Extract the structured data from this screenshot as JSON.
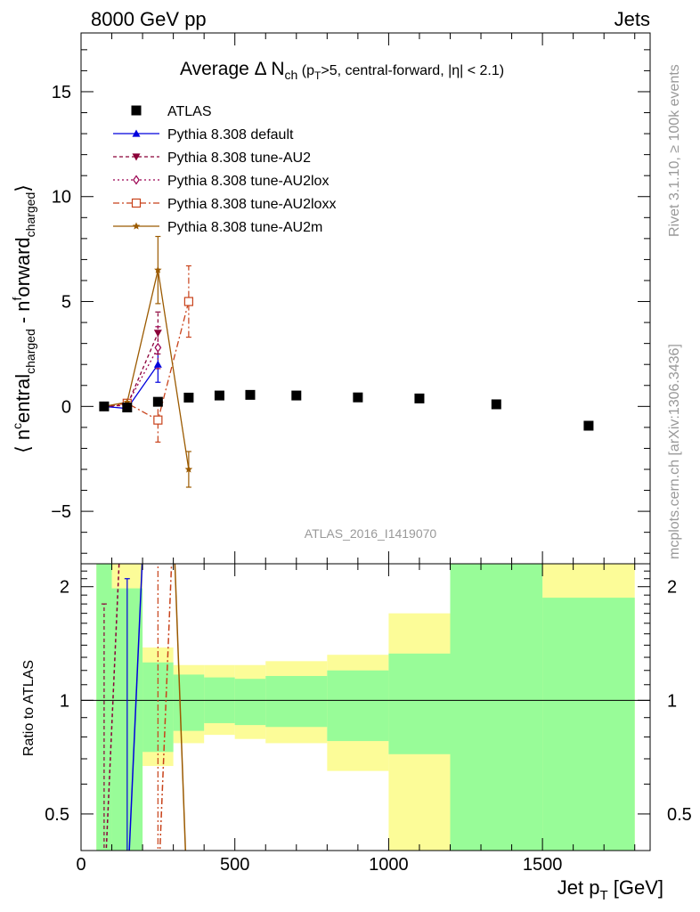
{
  "header": {
    "energy_label": "8000 GeV pp",
    "category_label": "Jets",
    "analysis_id": "ATLAS_2016_I1419070",
    "rivet_label": "Rivet 3.1.10, ≥ 100k events",
    "source_label": "mcplots.cern.ch [arXiv:1306.3436]"
  },
  "chart_data": [
    {
      "type": "scatter",
      "title": "Average Δ N_ch (p_T>5, central-forward, |η| < 2.1)",
      "title_parts": {
        "main": "Average Δ N",
        "sub1": "ch",
        "rest1": " (p",
        "sub2": "T",
        "rest2": ">5, central-forward, |η| < 2.1)"
      },
      "ylabel": "⟨ n^central_charged - n^forward_charged ⟩",
      "ylabel_parts": {
        "open": "⟨ n",
        "sup1": "c",
        "t1": "entral",
        "sub1": "charged",
        "t2": " - n",
        "sup2": "f",
        "t3": "orward",
        "sub2": "charged",
        "close": "⟩"
      },
      "xlabel": "Jet p_T [GeV]",
      "xlabel_parts": {
        "main": "Jet p",
        "sub": "T",
        "unit": " [GeV]"
      },
      "xlim": [
        0,
        1850
      ],
      "ylim": [
        -7.5,
        17.8
      ],
      "yticks": [
        -5,
        0,
        5,
        10,
        15
      ],
      "ytick_labels": [
        "−5",
        "0",
        "5",
        "10",
        "15"
      ],
      "legend_position": "top-left",
      "series": [
        {
          "name": "ATLAS",
          "color": "#000000",
          "marker": "square",
          "dash": "",
          "x": [
            75,
            150,
            250,
            350,
            450,
            550,
            700,
            900,
            1100,
            1350,
            1650
          ],
          "y": [
            0.0,
            -0.05,
            0.22,
            0.42,
            0.52,
            0.55,
            0.52,
            0.43,
            0.38,
            0.1,
            -0.92
          ],
          "err": [
            0,
            0,
            0,
            0,
            0,
            0,
            0,
            0,
            0,
            0,
            0
          ]
        },
        {
          "name": "Pythia 8.308 default",
          "color": "#0000dd",
          "marker": "triangle-up",
          "dash": "",
          "x": [
            75,
            150,
            250
          ],
          "y": [
            0.0,
            -0.1,
            2.0
          ],
          "err": [
            0.1,
            0.15,
            0.85
          ]
        },
        {
          "name": "Pythia 8.308 tune-AU2",
          "color": "#8b0038",
          "marker": "triangle-down",
          "dash": "4,3",
          "x": [
            75,
            150,
            250
          ],
          "y": [
            0.0,
            0.05,
            3.5
          ],
          "err": [
            0.1,
            0.15,
            1.0
          ]
        },
        {
          "name": "Pythia 8.308 tune-AU2lox",
          "color": "#9b0050",
          "marker": "diamond",
          "dash": "2,3",
          "x": [
            75,
            150,
            250
          ],
          "y": [
            0.0,
            0.1,
            2.8
          ],
          "err": [
            0.1,
            0.15,
            1.0
          ]
        },
        {
          "name": "Pythia 8.308 tune-AU2loxx",
          "color": "#c8421a",
          "marker": "open-square",
          "dash": "7,3,2,3",
          "x": [
            75,
            150,
            250,
            350
          ],
          "y": [
            0.0,
            0.15,
            -0.65,
            5.0
          ],
          "err": [
            0.1,
            0.15,
            1.05,
            1.7
          ]
        },
        {
          "name": "Pythia 8.308 tune-AU2m",
          "color": "#9b5a00",
          "marker": "star",
          "dash": "",
          "x": [
            75,
            150,
            250,
            350
          ],
          "y": [
            0.0,
            0.2,
            6.5,
            -3.0
          ],
          "err": [
            0.1,
            0.15,
            1.6,
            0.85
          ]
        }
      ]
    },
    {
      "type": "line",
      "ylabel": "Ratio to ATLAS",
      "xlim": [
        0,
        1850
      ],
      "ylim": [
        0.4,
        2.3
      ],
      "log_y": true,
      "yticks": [
        0.5,
        1,
        2
      ],
      "ytick_labels": [
        "0.5",
        "1",
        "2"
      ],
      "xticks": [
        0,
        500,
        1000,
        1500
      ],
      "xtick_labels": [
        "0",
        "500",
        "1000",
        "1500"
      ],
      "bands": [
        {
          "x": [
            50,
            100
          ],
          "green": [
            0.4,
            2.3
          ],
          "yellow": [
            0.4,
            2.3
          ]
        },
        {
          "x": [
            100,
            200
          ],
          "green": [
            0.4,
            1.98
          ],
          "yellow": [
            0.4,
            2.3
          ]
        },
        {
          "x": [
            200,
            300
          ],
          "green": [
            0.73,
            1.26
          ],
          "yellow": [
            0.67,
            1.38
          ]
        },
        {
          "x": [
            300,
            400
          ],
          "green": [
            0.83,
            1.17
          ],
          "yellow": [
            0.77,
            1.24
          ]
        },
        {
          "x": [
            400,
            500
          ],
          "green": [
            0.87,
            1.15
          ],
          "yellow": [
            0.81,
            1.24
          ]
        },
        {
          "x": [
            500,
            600
          ],
          "green": [
            0.86,
            1.14
          ],
          "yellow": [
            0.79,
            1.24
          ]
        },
        {
          "x": [
            600,
            800
          ],
          "green": [
            0.85,
            1.16
          ],
          "yellow": [
            0.77,
            1.27
          ]
        },
        {
          "x": [
            800,
            1000
          ],
          "green": [
            0.78,
            1.2
          ],
          "yellow": [
            0.65,
            1.32
          ]
        },
        {
          "x": [
            1000,
            1200
          ],
          "green": [
            0.72,
            1.33
          ],
          "yellow": [
            0.4,
            1.7
          ]
        },
        {
          "x": [
            1200,
            1500
          ],
          "green": [
            0.4,
            2.3
          ],
          "yellow": [
            0.4,
            2.3
          ]
        },
        {
          "x": [
            1500,
            1800
          ],
          "green": [
            0.4,
            1.87
          ],
          "yellow": [
            0.4,
            2.3
          ]
        }
      ],
      "band_colors": {
        "green": "#98fc98",
        "yellow": "#fcfc98"
      },
      "series": [
        {
          "name": "Pythia 8.308 default",
          "color": "#0000dd",
          "dash": "",
          "x": [
            150,
            205
          ],
          "y": [
            0.3,
            3.0
          ],
          "err": [
            1.2,
            0
          ]
        },
        {
          "name": "Pythia 8.308 tune-AU2",
          "color": "#8b0038",
          "dash": "4,3",
          "x": [
            75,
            130
          ],
          "y": [
            0.3,
            3.0
          ],
          "err": [
            1.0,
            0
          ]
        },
        {
          "name": "Pythia 8.308 tune-AU2loxx",
          "color": "#c8421a",
          "dash": "7,3,2,3",
          "x": [
            250,
            300
          ],
          "y": [
            0.3,
            3.0
          ],
          "err": [
            1.5,
            0
          ]
        },
        {
          "name": "Pythia 8.308 tune-AU2m",
          "color": "#9b5a00",
          "dash": "",
          "x": [
            300,
            345
          ],
          "y": [
            3.0,
            0.3
          ],
          "err": [
            0,
            0
          ]
        }
      ]
    }
  ]
}
